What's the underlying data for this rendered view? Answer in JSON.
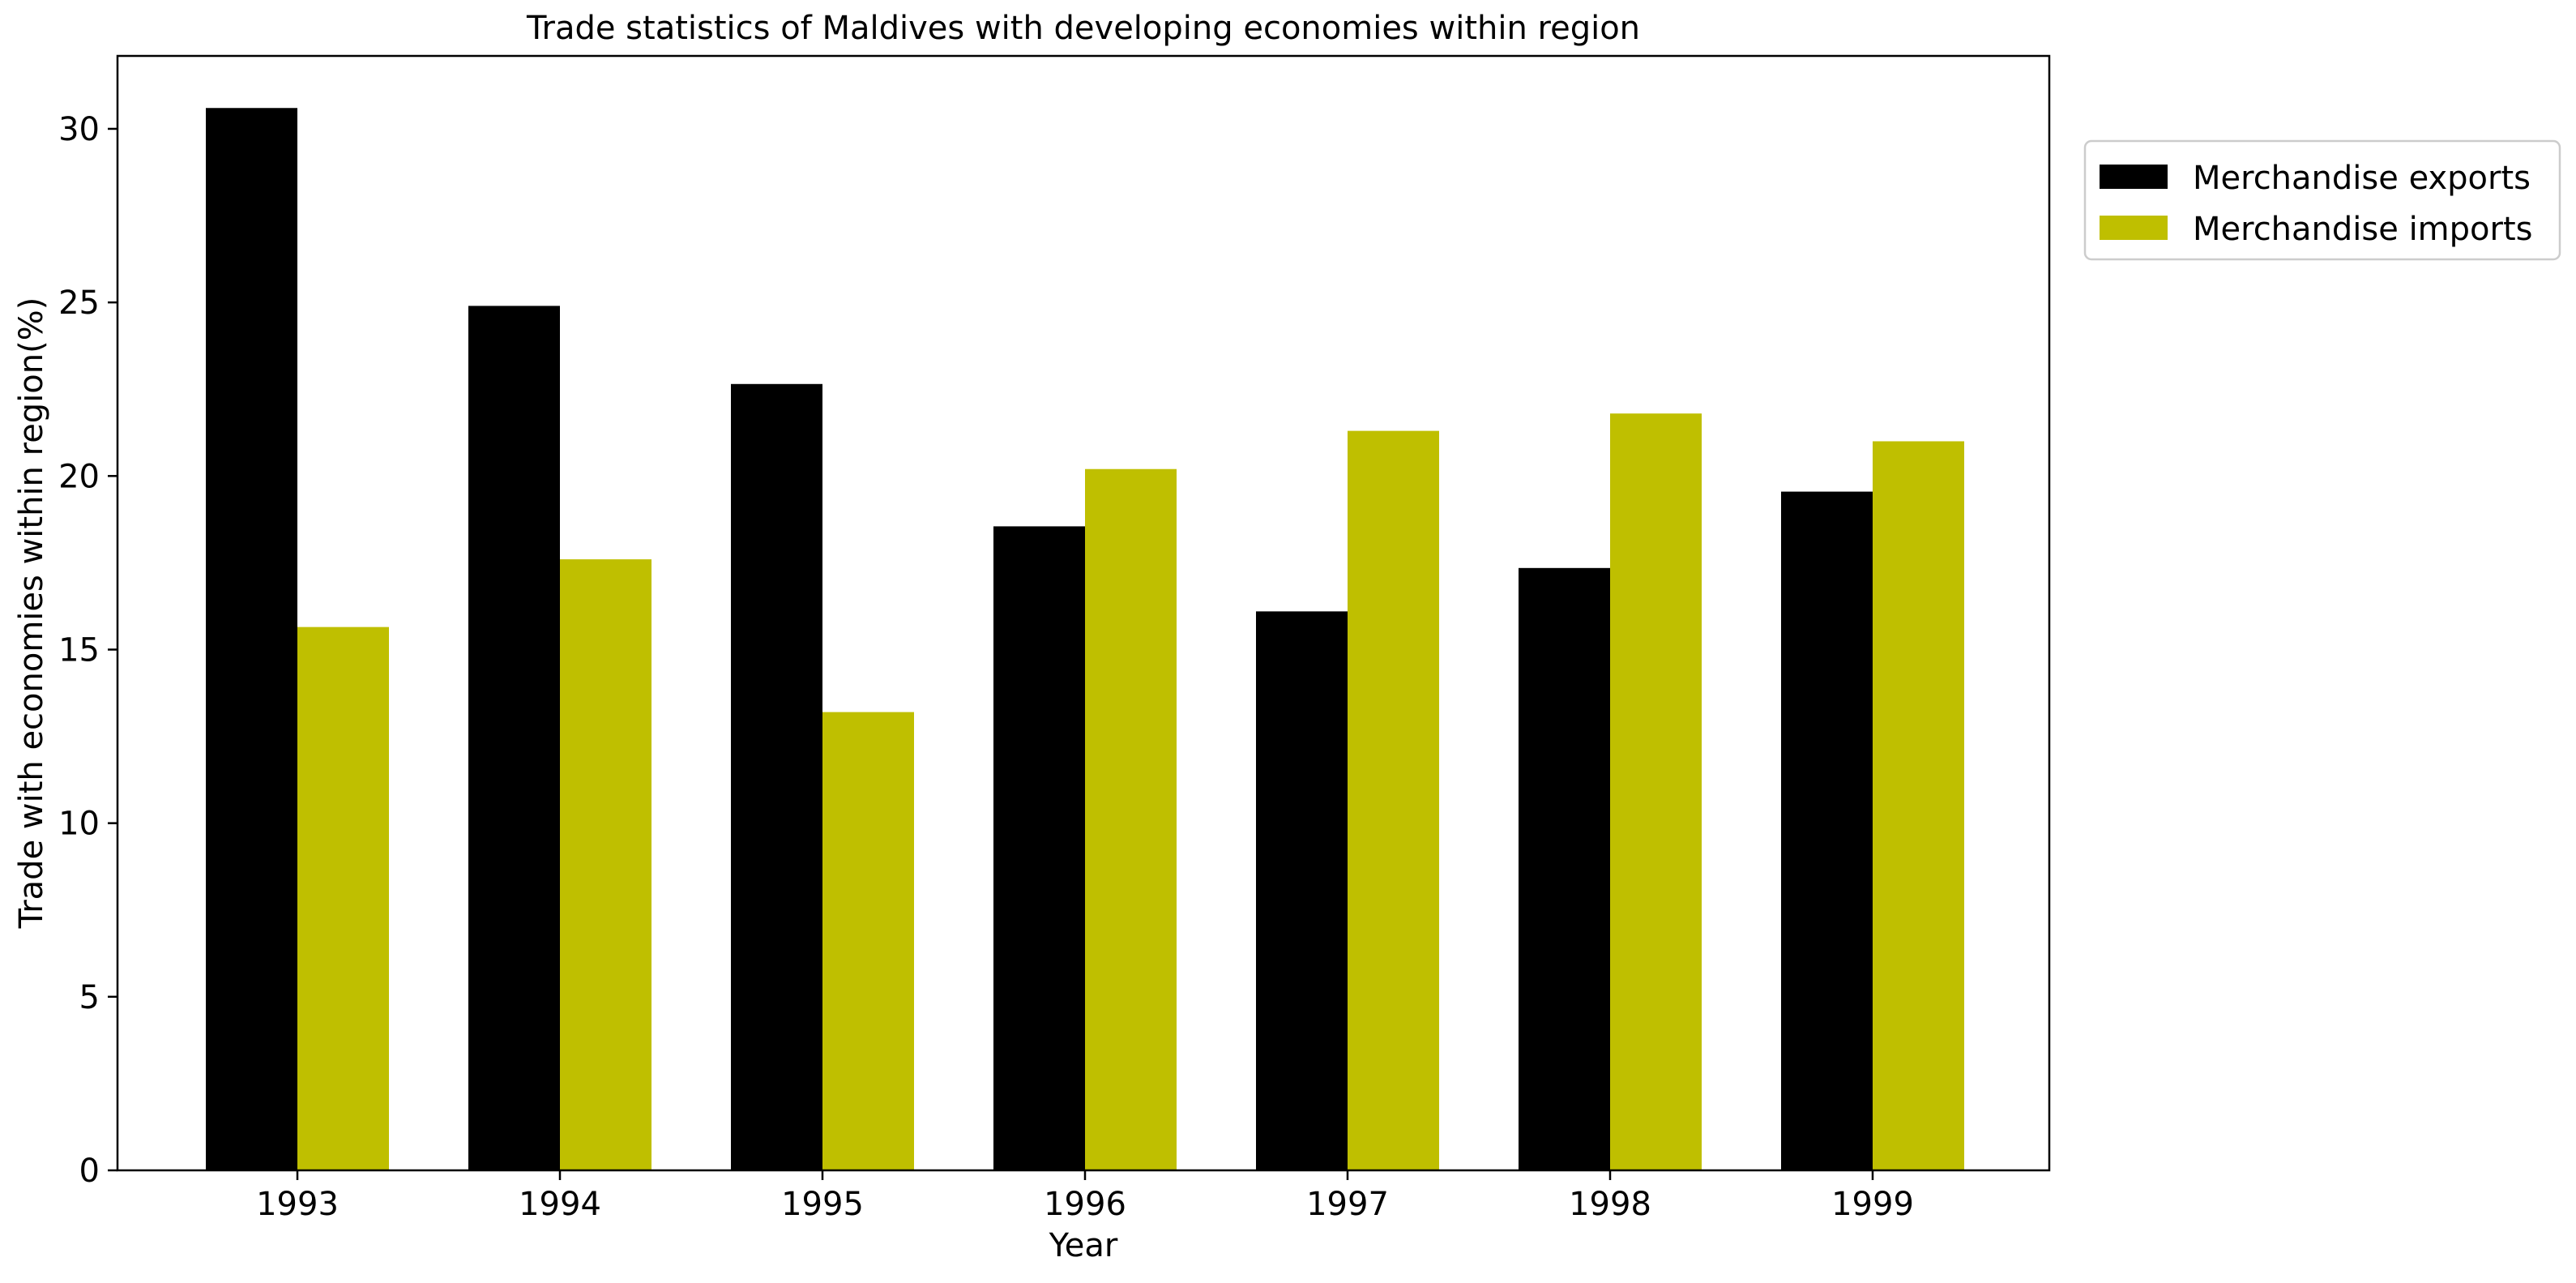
{
  "chart_data": {
    "type": "bar",
    "title": "Trade statistics of Maldives with developing economies within region",
    "xlabel": "Year",
    "ylabel": "Trade with economies within region(%)",
    "categories": [
      "1993",
      "1994",
      "1995",
      "1996",
      "1997",
      "1998",
      "1999"
    ],
    "series": [
      {
        "name": "Merchandise exports",
        "color": "#000000",
        "values": [
          30.6,
          24.9,
          22.65,
          18.55,
          16.1,
          17.35,
          19.55
        ]
      },
      {
        "name": "Merchandise imports",
        "color": "#bfbf00",
        "values": [
          15.65,
          17.6,
          13.2,
          20.2,
          21.3,
          21.8,
          21.0
        ]
      }
    ],
    "ylim": [
      0,
      32.1
    ],
    "yticks": [
      "0",
      "5",
      "10",
      "15",
      "20",
      "25",
      "30"
    ],
    "grid": false,
    "legend_position": "outside-top-right"
  }
}
